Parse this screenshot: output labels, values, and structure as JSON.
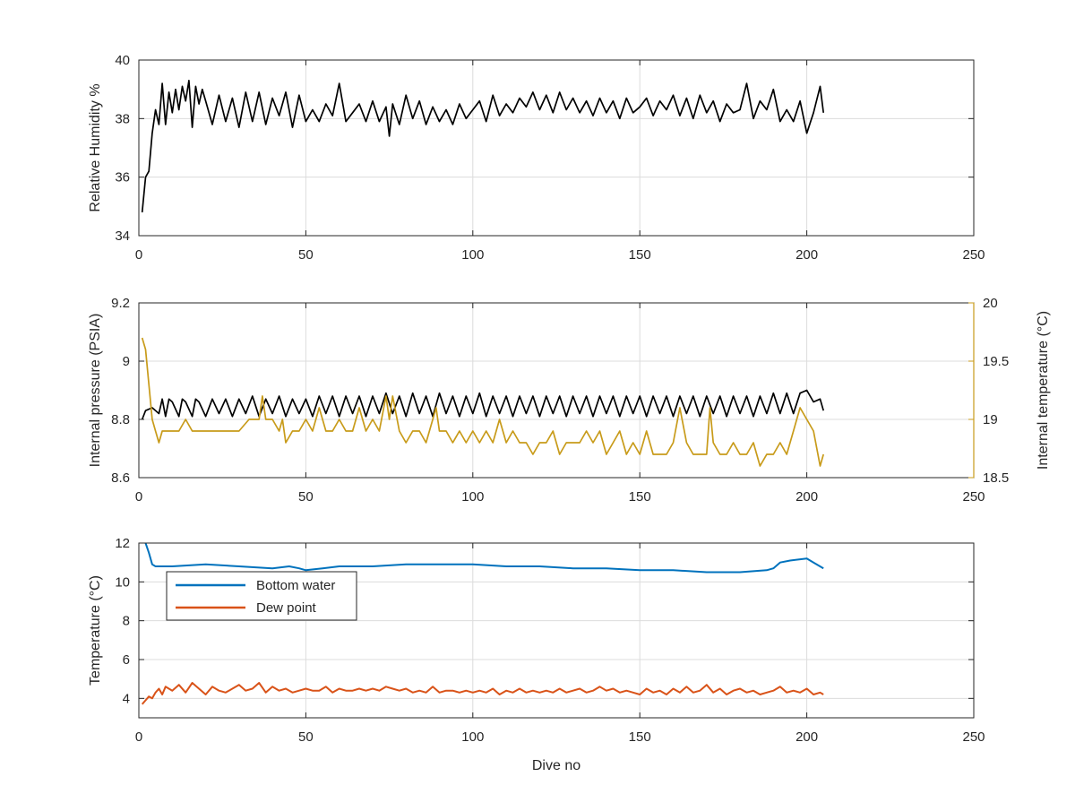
{
  "chart_data": [
    {
      "type": "line",
      "xlabel": "",
      "ylabel": "Relative Humidity %",
      "xlim": [
        0,
        250
      ],
      "ylim": [
        34,
        40
      ],
      "xticks": [
        0,
        50,
        100,
        150,
        200,
        250
      ],
      "yticks": [
        34,
        36,
        38,
        40
      ],
      "grid": true,
      "series": [
        {
          "color": "#000000",
          "x": [
            1,
            2,
            3,
            4,
            5,
            6,
            7,
            8,
            9,
            10,
            11,
            12,
            13,
            14,
            15,
            16,
            17,
            18,
            19,
            20,
            22,
            24,
            26,
            28,
            30,
            32,
            34,
            36,
            38,
            40,
            42,
            44,
            46,
            48,
            50,
            52,
            54,
            56,
            58,
            60,
            62,
            64,
            66,
            68,
            70,
            72,
            74,
            75,
            76,
            78,
            80,
            82,
            84,
            86,
            88,
            90,
            92,
            94,
            96,
            98,
            100,
            102,
            104,
            106,
            108,
            110,
            112,
            114,
            116,
            118,
            120,
            122,
            124,
            126,
            128,
            130,
            132,
            134,
            136,
            138,
            140,
            142,
            144,
            146,
            148,
            150,
            152,
            154,
            156,
            158,
            160,
            162,
            164,
            166,
            168,
            170,
            172,
            174,
            176,
            178,
            180,
            182,
            184,
            186,
            188,
            190,
            192,
            194,
            196,
            198,
            200,
            202,
            204,
            205
          ],
          "values": [
            34.8,
            36.0,
            36.2,
            37.5,
            38.3,
            37.8,
            39.2,
            37.8,
            38.9,
            38.2,
            39.0,
            38.3,
            39.1,
            38.6,
            39.3,
            37.7,
            39.1,
            38.5,
            39.0,
            38.6,
            37.8,
            38.8,
            37.9,
            38.7,
            37.7,
            38.9,
            37.9,
            38.9,
            37.8,
            38.7,
            38.1,
            38.9,
            37.7,
            38.8,
            37.9,
            38.3,
            37.9,
            38.5,
            38.1,
            39.2,
            37.9,
            38.2,
            38.5,
            37.9,
            38.6,
            37.9,
            38.4,
            37.4,
            38.5,
            37.8,
            38.8,
            38.0,
            38.6,
            37.8,
            38.4,
            37.9,
            38.3,
            37.8,
            38.5,
            38.0,
            38.3,
            38.6,
            37.9,
            38.8,
            38.1,
            38.5,
            38.2,
            38.7,
            38.4,
            38.9,
            38.3,
            38.8,
            38.2,
            38.9,
            38.3,
            38.7,
            38.2,
            38.6,
            38.1,
            38.7,
            38.2,
            38.6,
            38.0,
            38.7,
            38.2,
            38.4,
            38.7,
            38.1,
            38.6,
            38.3,
            38.8,
            38.1,
            38.7,
            38.0,
            38.8,
            38.2,
            38.6,
            37.9,
            38.5,
            38.2,
            38.3,
            39.2,
            38.0,
            38.6,
            38.3,
            39.0,
            37.9,
            38.3,
            37.9,
            38.6,
            37.5,
            38.2,
            39.1,
            38.2
          ]
        }
      ]
    },
    {
      "type": "line",
      "xlabel": "",
      "ylabel": "Internal pressure (PSIA)",
      "y2label": "Internal temperature (°C)",
      "xlim": [
        0,
        250
      ],
      "ylim": [
        8.6,
        9.2
      ],
      "y2lim": [
        18.5,
        20
      ],
      "xticks": [
        0,
        50,
        100,
        150,
        200,
        250
      ],
      "yticks": [
        8.6,
        8.8,
        9,
        9.2
      ],
      "y2ticks": [
        18.5,
        19,
        19.5,
        20
      ],
      "grid": true,
      "series": [
        {
          "axis": "left",
          "color": "#000000",
          "x": [
            1,
            2,
            4,
            6,
            7,
            8,
            9,
            10,
            12,
            13,
            14,
            16,
            17,
            18,
            20,
            22,
            24,
            26,
            28,
            30,
            32,
            34,
            36,
            38,
            40,
            42,
            44,
            46,
            48,
            50,
            52,
            54,
            56,
            58,
            60,
            62,
            64,
            66,
            68,
            70,
            72,
            74,
            76,
            78,
            80,
            82,
            84,
            86,
            88,
            90,
            92,
            94,
            96,
            98,
            100,
            102,
            104,
            106,
            108,
            110,
            112,
            114,
            116,
            118,
            120,
            122,
            124,
            126,
            128,
            130,
            132,
            134,
            136,
            138,
            140,
            142,
            144,
            146,
            148,
            150,
            152,
            154,
            156,
            158,
            160,
            162,
            164,
            166,
            168,
            170,
            172,
            174,
            176,
            178,
            180,
            182,
            184,
            186,
            188,
            190,
            192,
            194,
            196,
            198,
            200,
            202,
            204,
            205
          ],
          "values": [
            8.8,
            8.83,
            8.84,
            8.82,
            8.87,
            8.81,
            8.87,
            8.86,
            8.81,
            8.87,
            8.86,
            8.81,
            8.87,
            8.86,
            8.81,
            8.87,
            8.82,
            8.87,
            8.81,
            8.87,
            8.82,
            8.88,
            8.81,
            8.87,
            8.82,
            8.88,
            8.81,
            8.87,
            8.82,
            8.87,
            8.81,
            8.88,
            8.82,
            8.88,
            8.81,
            8.88,
            8.82,
            8.88,
            8.81,
            8.88,
            8.82,
            8.89,
            8.82,
            8.88,
            8.81,
            8.89,
            8.82,
            8.88,
            8.81,
            8.89,
            8.82,
            8.88,
            8.81,
            8.88,
            8.82,
            8.89,
            8.81,
            8.88,
            8.82,
            8.88,
            8.81,
            8.88,
            8.82,
            8.88,
            8.81,
            8.88,
            8.82,
            8.88,
            8.81,
            8.88,
            8.82,
            8.88,
            8.81,
            8.88,
            8.82,
            8.88,
            8.81,
            8.88,
            8.82,
            8.88,
            8.81,
            8.88,
            8.82,
            8.88,
            8.81,
            8.88,
            8.82,
            8.88,
            8.81,
            8.88,
            8.82,
            8.88,
            8.81,
            8.88,
            8.82,
            8.88,
            8.81,
            8.88,
            8.82,
            8.89,
            8.82,
            8.89,
            8.82,
            8.89,
            8.9,
            8.86,
            8.87,
            8.83
          ]
        },
        {
          "axis": "right",
          "color": "#C89B1A",
          "x": [
            1,
            2,
            3,
            4,
            5,
            6,
            7,
            8,
            10,
            12,
            14,
            16,
            18,
            20,
            25,
            30,
            33,
            36,
            37,
            38,
            40,
            42,
            43,
            44,
            46,
            48,
            50,
            52,
            54,
            56,
            58,
            60,
            62,
            64,
            66,
            68,
            70,
            72,
            74,
            75,
            76,
            78,
            80,
            82,
            84,
            86,
            88,
            89,
            90,
            92,
            94,
            96,
            98,
            100,
            102,
            104,
            106,
            108,
            110,
            112,
            114,
            116,
            118,
            120,
            122,
            124,
            126,
            128,
            130,
            132,
            134,
            136,
            138,
            140,
            142,
            144,
            146,
            148,
            150,
            152,
            154,
            156,
            158,
            160,
            162,
            164,
            166,
            168,
            170,
            171,
            172,
            174,
            176,
            178,
            180,
            182,
            184,
            186,
            188,
            190,
            192,
            194,
            196,
            198,
            200,
            202,
            204,
            205
          ],
          "values": [
            19.7,
            19.6,
            19.3,
            19.0,
            18.9,
            18.8,
            18.9,
            18.9,
            18.9,
            18.9,
            19.0,
            18.9,
            18.9,
            18.9,
            18.9,
            18.9,
            19.0,
            19.0,
            19.2,
            19.0,
            19.0,
            18.9,
            19.0,
            18.8,
            18.9,
            18.9,
            19.0,
            18.9,
            19.1,
            18.9,
            18.9,
            19.0,
            18.9,
            18.9,
            19.1,
            18.9,
            19.0,
            18.9,
            19.2,
            19.0,
            19.2,
            18.9,
            18.8,
            18.9,
            18.9,
            18.8,
            19.0,
            19.1,
            18.9,
            18.9,
            18.8,
            18.9,
            18.8,
            18.9,
            18.8,
            18.9,
            18.8,
            19.0,
            18.8,
            18.9,
            18.8,
            18.8,
            18.7,
            18.8,
            18.8,
            18.9,
            18.7,
            18.8,
            18.8,
            18.8,
            18.9,
            18.8,
            18.9,
            18.7,
            18.8,
            18.9,
            18.7,
            18.8,
            18.7,
            18.9,
            18.7,
            18.7,
            18.7,
            18.8,
            19.1,
            18.8,
            18.7,
            18.7,
            18.7,
            19.1,
            18.8,
            18.7,
            18.7,
            18.8,
            18.7,
            18.7,
            18.8,
            18.6,
            18.7,
            18.7,
            18.8,
            18.7,
            18.9,
            19.1,
            19.0,
            18.9,
            18.6,
            18.7
          ]
        }
      ]
    },
    {
      "type": "line",
      "xlabel": "Dive no",
      "ylabel": "Temperature (°C)",
      "xlim": [
        0,
        250
      ],
      "ylim": [
        3,
        12
      ],
      "xticks": [
        0,
        50,
        100,
        150,
        200,
        250
      ],
      "yticks": [
        4,
        6,
        8,
        10,
        12
      ],
      "grid": true,
      "legend": "top-left",
      "series": [
        {
          "name": "Bottom water",
          "color": "#0072BD",
          "x": [
            2,
            3,
            4,
            5,
            10,
            20,
            30,
            40,
            45,
            48,
            50,
            55,
            60,
            70,
            80,
            90,
            100,
            110,
            120,
            130,
            140,
            150,
            160,
            170,
            180,
            188,
            190,
            192,
            195,
            200,
            202,
            205
          ],
          "values": [
            12.0,
            11.5,
            10.9,
            10.8,
            10.8,
            10.9,
            10.8,
            10.7,
            10.8,
            10.7,
            10.6,
            10.7,
            10.8,
            10.8,
            10.9,
            10.9,
            10.9,
            10.8,
            10.8,
            10.7,
            10.7,
            10.6,
            10.6,
            10.5,
            10.5,
            10.6,
            10.7,
            11.0,
            11.1,
            11.2,
            11.0,
            10.7
          ]
        },
        {
          "name": "Dew point",
          "color": "#D95319",
          "x": [
            1,
            2,
            3,
            4,
            5,
            6,
            7,
            8,
            10,
            12,
            14,
            16,
            18,
            20,
            22,
            24,
            26,
            28,
            30,
            32,
            34,
            36,
            38,
            40,
            42,
            44,
            46,
            48,
            50,
            52,
            54,
            56,
            58,
            60,
            62,
            64,
            66,
            68,
            70,
            72,
            74,
            76,
            78,
            80,
            82,
            84,
            86,
            88,
            90,
            92,
            94,
            96,
            98,
            100,
            102,
            104,
            106,
            108,
            110,
            112,
            114,
            116,
            118,
            120,
            122,
            124,
            126,
            128,
            130,
            132,
            134,
            136,
            138,
            140,
            142,
            144,
            146,
            148,
            150,
            152,
            154,
            156,
            158,
            160,
            162,
            164,
            166,
            168,
            170,
            172,
            174,
            176,
            178,
            180,
            182,
            184,
            186,
            188,
            190,
            192,
            194,
            196,
            198,
            200,
            202,
            204,
            205
          ],
          "values": [
            3.7,
            3.9,
            4.1,
            4.0,
            4.3,
            4.5,
            4.2,
            4.6,
            4.4,
            4.7,
            4.3,
            4.8,
            4.5,
            4.2,
            4.6,
            4.4,
            4.3,
            4.5,
            4.7,
            4.4,
            4.5,
            4.8,
            4.3,
            4.6,
            4.4,
            4.5,
            4.3,
            4.4,
            4.5,
            4.4,
            4.4,
            4.6,
            4.3,
            4.5,
            4.4,
            4.4,
            4.5,
            4.4,
            4.5,
            4.4,
            4.6,
            4.5,
            4.4,
            4.5,
            4.3,
            4.4,
            4.3,
            4.6,
            4.3,
            4.4,
            4.4,
            4.3,
            4.4,
            4.3,
            4.4,
            4.3,
            4.5,
            4.2,
            4.4,
            4.3,
            4.5,
            4.3,
            4.4,
            4.3,
            4.4,
            4.3,
            4.5,
            4.3,
            4.4,
            4.5,
            4.3,
            4.4,
            4.6,
            4.4,
            4.5,
            4.3,
            4.4,
            4.3,
            4.2,
            4.5,
            4.3,
            4.4,
            4.2,
            4.5,
            4.3,
            4.6,
            4.3,
            4.4,
            4.7,
            4.3,
            4.5,
            4.2,
            4.4,
            4.5,
            4.3,
            4.4,
            4.2,
            4.3,
            4.4,
            4.6,
            4.3,
            4.4,
            4.3,
            4.5,
            4.2,
            4.3,
            4.2
          ]
        }
      ]
    }
  ]
}
